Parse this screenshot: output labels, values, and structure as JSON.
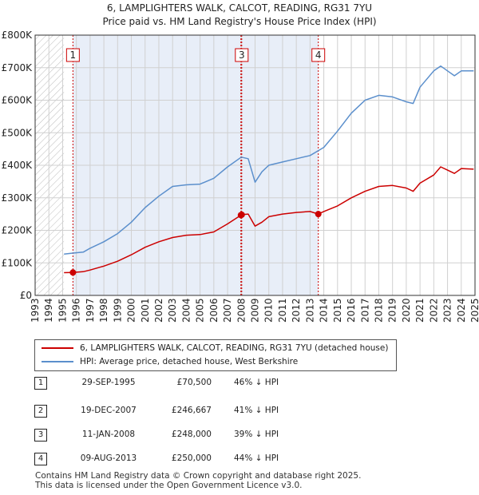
{
  "title_line1": "6, LAMPLIGHTERS WALK, CALCOT, READING, RG31 7YU",
  "title_line2": "Price paid vs. HM Land Registry's House Price Index (HPI)",
  "colors": {
    "red": "#cc0000",
    "blue": "#5b8fcc",
    "shade": "#e8eef8",
    "grid": "#d0d0d0",
    "hatch": "#c0c0c0"
  },
  "chart_data": {
    "type": "line",
    "title": "6, LAMPLIGHTERS WALK, CALCOT, READING, RG31 7YU",
    "subtitle": "Price paid vs. HM Land Registry's House Price Index (HPI)",
    "xlim": [
      1993,
      2025
    ],
    "ylim": [
      0,
      800000
    ],
    "x_ticks": [
      1993,
      1994,
      1995,
      1996,
      1997,
      1998,
      1999,
      2000,
      2001,
      2002,
      2003,
      2004,
      2005,
      2006,
      2007,
      2008,
      2009,
      2010,
      2011,
      2012,
      2013,
      2014,
      2015,
      2016,
      2017,
      2018,
      2019,
      2020,
      2021,
      2022,
      2023,
      2024,
      2025
    ],
    "y_ticks": [
      0,
      100000,
      200000,
      300000,
      400000,
      500000,
      600000,
      700000,
      800000
    ],
    "y_tick_labels": [
      "£0",
      "£100K",
      "£200K",
      "£300K",
      "£400K",
      "£500K",
      "£600K",
      "£700K",
      "£800K"
    ],
    "hatched_region": [
      1993,
      1995.1
    ],
    "shaded_regions": [
      [
        1995.75,
        2007.97
      ],
      [
        2008.03,
        2013.6
      ]
    ],
    "series": [
      {
        "name": "6, LAMPLIGHTERS WALK, CALCOT, READING, RG31 7YU (detached house)",
        "color": "red",
        "points": [
          [
            1995.1,
            70000
          ],
          [
            1995.75,
            70500
          ],
          [
            1996.5,
            73000
          ],
          [
            1997,
            78000
          ],
          [
            1998,
            90000
          ],
          [
            1999,
            105000
          ],
          [
            2000,
            125000
          ],
          [
            2001,
            148000
          ],
          [
            2002,
            165000
          ],
          [
            2003,
            178000
          ],
          [
            2004,
            185000
          ],
          [
            2005,
            187000
          ],
          [
            2006,
            195000
          ],
          [
            2007,
            220000
          ],
          [
            2007.97,
            246667
          ],
          [
            2008.03,
            248000
          ],
          [
            2008.5,
            250000
          ],
          [
            2009,
            213000
          ],
          [
            2009.5,
            225000
          ],
          [
            2010,
            242000
          ],
          [
            2011,
            250000
          ],
          [
            2012,
            255000
          ],
          [
            2013,
            258000
          ],
          [
            2013.6,
            250000
          ],
          [
            2014,
            258000
          ],
          [
            2015,
            275000
          ],
          [
            2016,
            300000
          ],
          [
            2017,
            320000
          ],
          [
            2018,
            335000
          ],
          [
            2019,
            338000
          ],
          [
            2020,
            330000
          ],
          [
            2020.5,
            320000
          ],
          [
            2021,
            345000
          ],
          [
            2022,
            370000
          ],
          [
            2022.5,
            395000
          ],
          [
            2023,
            385000
          ],
          [
            2023.5,
            375000
          ],
          [
            2024,
            390000
          ],
          [
            2024.9,
            388000
          ]
        ]
      },
      {
        "name": "HPI: Average price, detached house, West Berkshire",
        "color": "blue",
        "points": [
          [
            1995.1,
            127000
          ],
          [
            1995.75,
            130000
          ],
          [
            1996.5,
            133000
          ],
          [
            1997,
            145000
          ],
          [
            1998,
            165000
          ],
          [
            1999,
            190000
          ],
          [
            2000,
            225000
          ],
          [
            2001,
            270000
          ],
          [
            2002,
            305000
          ],
          [
            2003,
            335000
          ],
          [
            2004,
            340000
          ],
          [
            2005,
            342000
          ],
          [
            2006,
            360000
          ],
          [
            2007,
            395000
          ],
          [
            2008,
            425000
          ],
          [
            2008.5,
            420000
          ],
          [
            2009,
            348000
          ],
          [
            2009.5,
            380000
          ],
          [
            2010,
            400000
          ],
          [
            2011,
            410000
          ],
          [
            2012,
            420000
          ],
          [
            2013,
            430000
          ],
          [
            2014,
            455000
          ],
          [
            2015,
            505000
          ],
          [
            2016,
            560000
          ],
          [
            2017,
            600000
          ],
          [
            2018,
            615000
          ],
          [
            2019,
            610000
          ],
          [
            2020,
            595000
          ],
          [
            2020.5,
            590000
          ],
          [
            2021,
            640000
          ],
          [
            2022,
            690000
          ],
          [
            2022.5,
            705000
          ],
          [
            2023,
            690000
          ],
          [
            2023.5,
            675000
          ],
          [
            2024,
            690000
          ],
          [
            2024.9,
            690000
          ]
        ]
      }
    ],
    "sales": [
      {
        "label": "1",
        "x": 1995.75,
        "price": 70500
      },
      {
        "label": "2",
        "x": 2007.97,
        "price": 246667
      },
      {
        "label": "3",
        "x": 2008.03,
        "price": 248000
      },
      {
        "label": "4",
        "x": 2013.6,
        "price": 250000
      }
    ],
    "markers_shown": [
      "1",
      "3",
      "4"
    ]
  },
  "legend": {
    "red_label": "6, LAMPLIGHTERS WALK, CALCOT, READING, RG31 7YU (detached house)",
    "blue_label": "HPI: Average price, detached house, West Berkshire"
  },
  "transactions": [
    {
      "num": "1",
      "date": "29-SEP-1995",
      "price": "£70,500",
      "hpi": "46% ↓ HPI"
    },
    {
      "num": "2",
      "date": "19-DEC-2007",
      "price": "£246,667",
      "hpi": "41% ↓ HPI"
    },
    {
      "num": "3",
      "date": "11-JAN-2008",
      "price": "£248,000",
      "hpi": "39% ↓ HPI"
    },
    {
      "num": "4",
      "date": "09-AUG-2013",
      "price": "£250,000",
      "hpi": "44% ↓ HPI"
    }
  ],
  "footer_line1": "Contains HM Land Registry data © Crown copyright and database right 2025.",
  "footer_line2": "This data is licensed under the Open Government Licence v3.0."
}
